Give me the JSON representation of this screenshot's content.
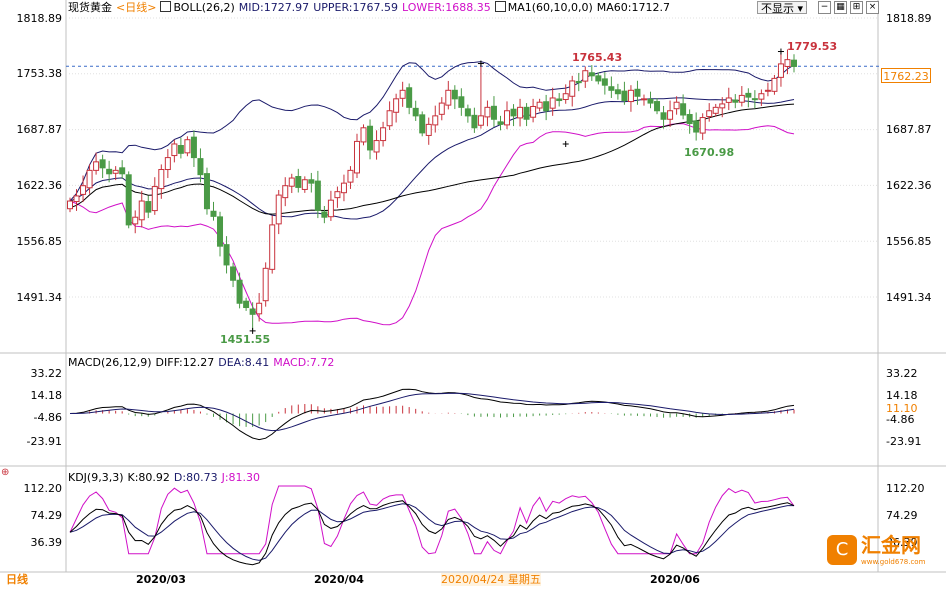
{
  "header": {
    "instrument": "现货黄金",
    "period": "<日线>",
    "boll_label": "BOLL(26,2)",
    "mid": "MID:1727.97",
    "upper": "UPPER:1767.59",
    "lower": "LOWER:1688.35",
    "ma_label": "MA1(60,10,0,0)",
    "ma60": "MA60:1712.7",
    "hide_btn": "不显示",
    "colors": {
      "up": "#c8323c",
      "down": "#4a9a46",
      "upper": "#1a1a6a",
      "lower": "#d010c8",
      "mid": "#1a1a6a",
      "ma": "#000000",
      "grid": "#e0e0e0"
    }
  },
  "price_axis": {
    "labels": [
      "1818.89",
      "1753.38",
      "1687.87",
      "1622.36",
      "1556.85",
      "1491.34"
    ],
    "current": "1762.23",
    "high_label": "1779.53",
    "high2_label": "1765.43",
    "low_label": "1451.55",
    "low2_label": "1670.98"
  },
  "macd_header": {
    "label": "MACD(26,12,9)",
    "diff": "DIFF:12.27",
    "dea": "DEA:8.41",
    "macd": "MACD:7.72"
  },
  "macd_axis": {
    "labels": [
      "33.22",
      "14.18",
      "-4.86",
      "-23.91"
    ],
    "current": "11.10"
  },
  "kdj_header": {
    "label": "KDJ(9,3,3)",
    "k": "K:80.92",
    "d": "D:80.73",
    "j": "J:81.30"
  },
  "kdj_axis": {
    "labels": [
      "112.20",
      "74.29",
      "36.39"
    ]
  },
  "x_axis": {
    "labels": [
      "2020/03",
      "2020/04",
      "2020/04/24 星期五",
      "2020/06"
    ]
  },
  "footer": {
    "period_label": "日线",
    "logo_text": "汇金网",
    "logo_url": "www.gold678.com"
  },
  "chart_data": {
    "type": "candlestick",
    "series": [
      {
        "name": "BOLL(26,2)",
        "values": [
          "MID:1727.97",
          "UPPER:1767.59",
          "LOWER:1688.35"
        ]
      },
      {
        "name": "MA1(60,10,0,0)",
        "values": [
          "MA60:1712.7"
        ]
      }
    ],
    "ylim": [
      1451.55,
      1818.89
    ],
    "annotations": [
      "1779.53",
      "1765.43",
      "1451.55",
      "1670.98"
    ],
    "closes": [
      1604,
      1610,
      1622,
      1640,
      1650,
      1643,
      1636,
      1640,
      1636,
      1576,
      1585,
      1604,
      1591,
      1621,
      1641,
      1655,
      1671,
      1660,
      1676,
      1655,
      1635,
      1595,
      1586,
      1551,
      1529,
      1511,
      1484,
      1479,
      1471,
      1484,
      1525,
      1576,
      1611,
      1622,
      1631,
      1620,
      1629,
      1625,
      1593,
      1585,
      1605,
      1615,
      1625,
      1640,
      1674,
      1690,
      1664,
      1675,
      1690,
      1710,
      1724,
      1734,
      1714,
      1704,
      1684,
      1694,
      1704,
      1719,
      1734,
      1724,
      1714,
      1704,
      1690,
      1704,
      1714,
      1700,
      1694,
      1710,
      1704,
      1714,
      1700,
      1715,
      1720,
      1710,
      1725,
      1722,
      1730,
      1745,
      1743,
      1757,
      1751,
      1745,
      1740,
      1734,
      1730,
      1722,
      1734,
      1727,
      1724,
      1719,
      1710,
      1700,
      1710,
      1720,
      1705,
      1695,
      1685,
      1702,
      1710,
      1714,
      1718,
      1725,
      1720,
      1728,
      1726,
      1723,
      1730,
      1734,
      1748,
      1765,
      1770,
      1762
    ]
  }
}
